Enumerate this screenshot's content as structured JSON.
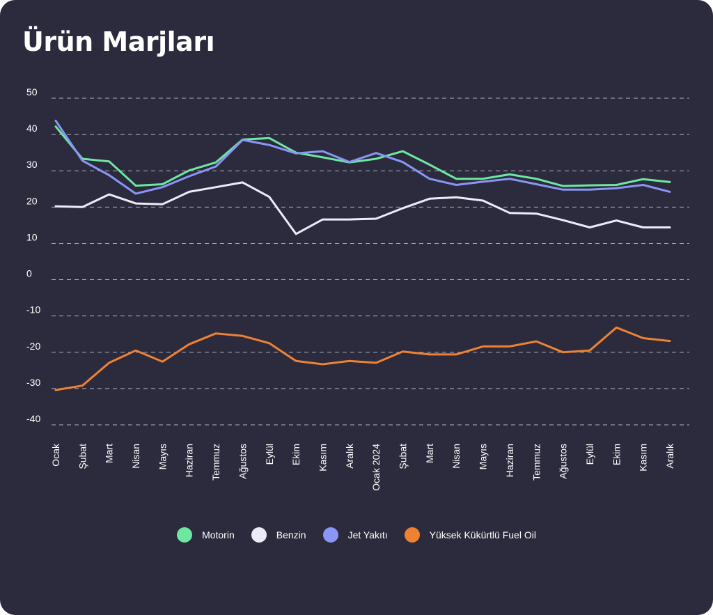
{
  "chart_data": {
    "type": "line",
    "title": "Ürün Marjları",
    "xlabel": "",
    "ylabel": "",
    "ylim": [
      -40,
      50
    ],
    "yticks": [
      50,
      40,
      30,
      20,
      10,
      0,
      -10,
      -20,
      -30,
      -40
    ],
    "grid": true,
    "legend_position": "bottom",
    "categories": [
      "Ocak",
      "Şubat",
      "Mart",
      "Nisan",
      "Mayıs",
      "Haziran",
      "Temmuz",
      "Ağustos",
      "Eylül",
      "Ekim",
      "Kasım",
      "Aralık",
      "Ocak 2024",
      "Şubat",
      "Mart",
      "Nisan",
      "Mayıs",
      "Haziran",
      "Temmuz",
      "Ağustos",
      "Eylül",
      "Ekim",
      "Kasım",
      "Aralık"
    ],
    "series": [
      {
        "name": "Motorin",
        "color": "#6ee7a0",
        "values": [
          42.2,
          33.3,
          32.6,
          25.9,
          26.3,
          30.1,
          32.3,
          38.6,
          39.0,
          35.0,
          33.7,
          32.3,
          33.3,
          35.4,
          31.7,
          27.8,
          27.8,
          29.0,
          27.8,
          25.8,
          26.0,
          26.1,
          27.7,
          26.9
        ]
      },
      {
        "name": "Benzin",
        "color": "#ececf8",
        "values": [
          20.2,
          20.0,
          23.5,
          21.0,
          20.8,
          24.2,
          25.5,
          26.8,
          22.8,
          12.6,
          16.6,
          16.6,
          16.8,
          19.7,
          22.3,
          22.7,
          21.8,
          18.4,
          18.2,
          16.4,
          14.4,
          16.3,
          14.4,
          14.4
        ]
      },
      {
        "name": "Jet Yakıtı",
        "color": "#8a96f5",
        "values": [
          43.8,
          32.8,
          28.8,
          23.7,
          25.5,
          28.5,
          31.2,
          38.5,
          37.1,
          34.8,
          35.4,
          32.4,
          34.9,
          32.4,
          27.8,
          26.1,
          27.0,
          27.8,
          26.3,
          24.8,
          24.8,
          25.2,
          26.1,
          24.2
        ]
      },
      {
        "name": "Yüksek Kükürtlü Fuel Oil",
        "color": "#ee8232",
        "values": [
          -30.4,
          -29.2,
          -22.9,
          -19.5,
          -22.6,
          -17.8,
          -14.8,
          -15.5,
          -17.5,
          -22.4,
          -23.3,
          -22.4,
          -22.9,
          -19.8,
          -20.6,
          -20.6,
          -18.4,
          -18.4,
          -17.0,
          -20.0,
          -19.5,
          -13.2,
          -16.1,
          -16.9
        ]
      }
    ]
  },
  "style": {
    "background": "#2b2b3d",
    "grid_color": "#c8c8dc",
    "text_color": "#ffffff"
  }
}
